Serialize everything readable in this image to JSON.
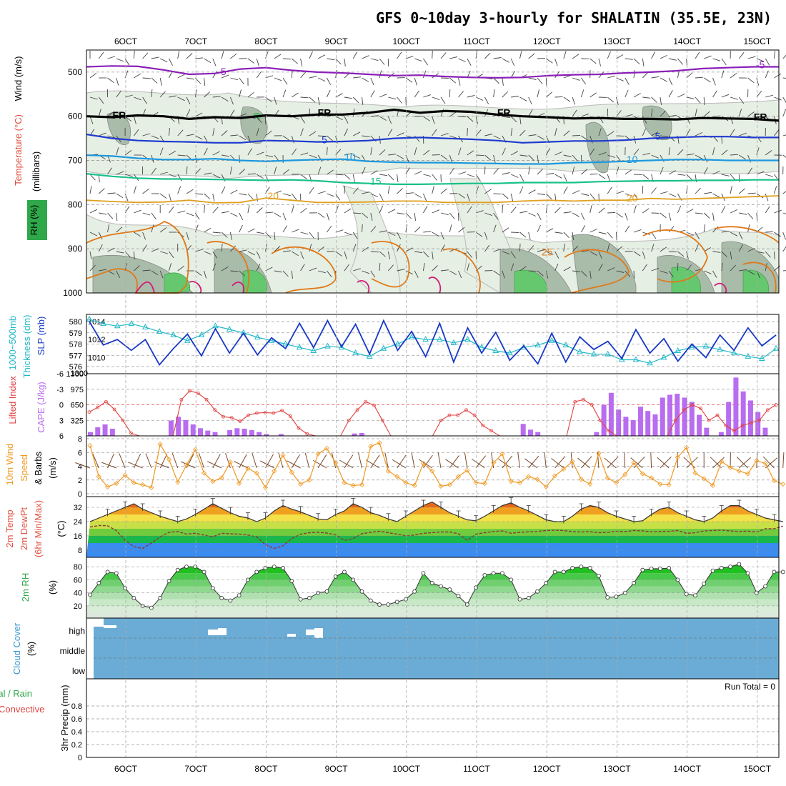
{
  "title": "GFS 0~10day 3-hourly for SHALATIN (35.5E, 23N)",
  "time_axis": {
    "labels": [
      "6OCT",
      "7OCT",
      "8OCT",
      "9OCT",
      "10OCT",
      "11OCT",
      "12OCT",
      "13OCT",
      "14OCT",
      "15OCT"
    ],
    "steps_per_day": 8,
    "n_steps": 80
  },
  "colors": {
    "rh": "#2fa84a",
    "rh_shade": "#9ec59e",
    "minus5": "#8a1fb8",
    "fr": "#000000",
    "t5": "#1e3ad0",
    "t10": "#1a98e0",
    "t15": "#18c08a",
    "t20": "#e0a020",
    "t25": "#e07818",
    "slp": "#1838c8",
    "thickness": "#20b8c8",
    "cape": "#b86cf0",
    "li": "#e04040",
    "wind": "#f09820",
    "barb": "#7a4a2a",
    "temp_max": "#e02020",
    "dewpt": "#8a3a3a",
    "cloud": "#6aacd6",
    "precip_total": "#2fa84a",
    "precip_conv": "#e04040"
  },
  "chart_data": [
    {
      "type": "line",
      "name": "upper-air",
      "ylabel": "(millibars)",
      "side_labels": [
        "Wind (m/s)",
        "Temperature (°C)",
        "RH (%)"
      ],
      "yticks": [
        500,
        600,
        700,
        800,
        900,
        1000
      ],
      "ylim": [
        1000,
        450
      ],
      "contours": [
        {
          "label": "-5",
          "level_mb": [
            488,
            486,
            487,
            495,
            505,
            503,
            493,
            490,
            496,
            500,
            502,
            505,
            508,
            507,
            510,
            512,
            513,
            512,
            508,
            506,
            505,
            502,
            500,
            497,
            492,
            490,
            488,
            488
          ],
          "annot": [
            {
              "text": "-5",
              "i": 14
            },
            {
              "text": "-5",
              "i": 76
            }
          ]
        },
        {
          "label": "FR",
          "level_mb": [
            600,
            602,
            598,
            600,
            606,
            602,
            604,
            598,
            600,
            596,
            596,
            592,
            585,
            592,
            588,
            590,
            596,
            600,
            602,
            605,
            604,
            606,
            606,
            607,
            604,
            605,
            606,
            610
          ],
          "annot": [
            {
              "text": "FR",
              "i": 2
            },
            {
              "text": "FR",
              "i": 26
            },
            {
              "text": "FR",
              "i": 48
            },
            {
              "text": "FR",
              "i": 76
            }
          ]
        },
        {
          "label": "5",
          "level_mb": [
            641,
            650,
            655,
            657,
            658,
            660,
            660,
            655,
            656,
            658,
            657,
            655,
            650,
            648,
            650,
            652,
            655,
            660,
            658,
            656,
            656,
            654,
            650,
            648,
            646,
            646,
            648,
            648
          ],
          "annot": [
            {
              "text": "5",
              "i": 28
            },
            {
              "text": "5",
              "i": 66
            }
          ]
        },
        {
          "label": "10",
          "level_mb": [
            688,
            690,
            695,
            698,
            698,
            696,
            700,
            702,
            700,
            698,
            697,
            702,
            704,
            705,
            705,
            706,
            707,
            708,
            708,
            705,
            704,
            702,
            700,
            698,
            698,
            700,
            700,
            700
          ],
          "annot": [
            {
              "text": "10",
              "i": 29
            },
            {
              "text": "10",
              "i": 63
            }
          ]
        },
        {
          "label": "15",
          "level_mb": [
            730,
            736,
            740,
            742,
            742,
            743,
            744,
            745,
            744,
            746,
            750,
            752,
            754,
            754,
            753,
            752,
            752,
            750,
            750,
            750,
            748,
            747,
            746,
            746,
            745,
            745,
            744,
            744
          ],
          "annot": [
            {
              "text": "15",
              "i": 33
            }
          ]
        },
        {
          "label": "20",
          "level_mb": [
            790,
            793,
            795,
            794,
            790,
            796,
            795,
            785,
            790,
            795,
            795,
            794,
            792,
            792,
            795,
            795,
            795,
            792,
            790,
            792,
            790,
            790,
            786,
            788,
            786,
            784,
            782,
            780
          ],
          "annot": [
            {
              "text": "20",
              "i": 22
            },
            {
              "text": "20",
              "i": 63
            }
          ]
        },
        {
          "label": "25",
          "level_mb": [],
          "annot": [
            {
              "text": "25",
              "i": 28
            }
          ]
        }
      ]
    },
    {
      "type": "line",
      "name": "slp-thickness",
      "series": [
        {
          "name": "SLP (mb)",
          "yrange": [
            1009,
            1014
          ],
          "values": [
            1014,
            1011.4,
            1012,
            1010.8,
            1012,
            1009.2,
            1011,
            1012.6,
            1010.2,
            1013.2,
            1010.5,
            1012.7,
            1010.3,
            1012.2,
            1011,
            1013.8,
            1011.1,
            1014.1,
            1011.2,
            1013.7,
            1010.4,
            1014.1,
            1010.8,
            1012.9,
            1010.1,
            1013.8,
            1009.5,
            1013.3,
            1010.5,
            1012.8,
            1009.7,
            1011.3,
            1009.3,
            1012.7,
            1009.5,
            1012.3,
            1010.9,
            1011.8,
            1009.9,
            1013.1,
            1010.5,
            1012.1,
            1009.6,
            1011.5,
            1010,
            1012.5,
            1010.8,
            1013.3,
            1011.3,
            1012.5
          ]
        },
        {
          "name": "1000~500mb Thickness (dm)",
          "yrange": [
            576,
            580
          ],
          "values": [
            580.2,
            579.8,
            579.6,
            579.8,
            579.5,
            579.1,
            578.8,
            578.3,
            578.8,
            579.6,
            579.3,
            579,
            578.6,
            578.3,
            578,
            577.7,
            577.4,
            577.8,
            577.7,
            577.2,
            576.9,
            577.6,
            578,
            578.6,
            578.4,
            578.4,
            578.1,
            578.4,
            577.7,
            577.4,
            577.2,
            577.7,
            577.9,
            578.3,
            577.9,
            577.3,
            577.1,
            577.1,
            576.6,
            576.6,
            576.3,
            576.8,
            577.4,
            577.7,
            577.8,
            577.5,
            577.2,
            576.9,
            576.7,
            577.6
          ]
        }
      ],
      "yticks_left": [
        576,
        577,
        578,
        579,
        580
      ],
      "yticks_right": [
        1010,
        1012,
        1014
      ]
    },
    {
      "type": "bar",
      "name": "cape-li",
      "series": [
        {
          "name": "CAPE (J/kg)",
          "yrange": [
            0,
            1300
          ],
          "values": [
            80,
            180,
            240,
            150,
            0,
            0,
            0,
            0,
            0,
            0,
            0,
            320,
            400,
            330,
            240,
            160,
            110,
            80,
            0,
            120,
            160,
            150,
            120,
            80,
            40,
            0,
            40,
            0,
            0,
            0,
            0,
            0,
            0,
            0,
            0,
            0,
            50,
            60,
            0,
            0,
            0,
            0,
            0,
            0,
            0,
            0,
            0,
            0,
            0,
            0,
            0,
            0,
            0,
            0,
            0,
            0,
            0,
            0,
            0,
            250,
            130,
            80,
            0,
            0,
            0,
            0,
            0,
            0,
            0,
            80,
            650,
            900,
            550,
            400,
            330,
            610,
            520,
            450,
            800,
            860,
            880,
            800,
            710,
            440,
            170,
            0,
            80,
            710,
            1220,
            930,
            740,
            500,
            170,
            0
          ]
        },
        {
          "name": "Lifted Index",
          "yrange": [
            6,
            -6
          ],
          "values": [
            1.4,
            0.5,
            -0.6,
            0.9,
            3,
            5.5,
            6,
            6,
            6,
            6,
            6,
            -1,
            -2.7,
            -2.2,
            -1,
            1,
            2.3,
            2.5,
            3.2,
            2,
            1.6,
            1.5,
            1.6,
            1.1,
            2.2,
            4.5,
            5.6,
            6,
            6,
            6,
            6,
            3,
            1,
            -0.6,
            0.1,
            3,
            6,
            6,
            6,
            6,
            6,
            6,
            3,
            2,
            2,
            1,
            2,
            4,
            5,
            6,
            6,
            6,
            6,
            6,
            6,
            6,
            6,
            6,
            -0.6,
            -1,
            0,
            3,
            5,
            6,
            6,
            6,
            6,
            6,
            6,
            6,
            3,
            1,
            0,
            0.7,
            3,
            2,
            4,
            5,
            4,
            3.5,
            3,
            1,
            0
          ]
        }
      ],
      "yticks_left": [
        -6,
        -3,
        0,
        3,
        6
      ],
      "yticks_right": [
        325,
        650,
        975,
        1300
      ]
    },
    {
      "type": "line",
      "name": "wind10m",
      "ylabel": "(m/s)",
      "yrange": [
        0,
        8
      ],
      "yticks": [
        0,
        2,
        4,
        6,
        8
      ],
      "values": [
        7,
        2.5,
        1,
        1.5,
        2.7,
        1.6,
        1.3,
        0.9,
        7.2,
        5,
        1.7,
        4.2,
        6.4,
        3,
        1.8,
        2.3,
        4.6,
        1.5,
        3.7,
        3,
        0.9,
        3.3,
        5.6,
        3.1,
        1.4,
        2,
        5.8,
        6.6,
        4.5,
        1.6,
        1.2,
        1.3,
        6.9,
        7.4,
        3.3,
        2.5,
        1.6,
        1.2,
        4.4,
        3.3,
        1.1,
        1.3,
        2.5,
        3.4,
        1.6,
        1.5,
        4.5,
        5.8,
        1.8,
        1.6,
        2.5,
        2.1,
        1,
        2.6,
        3.6,
        4.7,
        2.1,
        1.4,
        5.9,
        2.3,
        1.6,
        2.8,
        4.5,
        2.9,
        2.3,
        1.4,
        1.3,
        5.3,
        6.7,
        3,
        2.2,
        1.2,
        4.7,
        3.8,
        3.3,
        2.9,
        4.8,
        4.4,
        1.9,
        1.4
      ]
    },
    {
      "type": "area",
      "name": "temp-dewpt",
      "ylabel": "(°C)",
      "yrange": [
        4,
        38
      ],
      "yticks": [
        8,
        16,
        24,
        32
      ],
      "temp": [
        24,
        26,
        28,
        30,
        32,
        34,
        31,
        29,
        27,
        25.5,
        24,
        25.5,
        28,
        31,
        34,
        31.5,
        29,
        27,
        26,
        24,
        26,
        30,
        33,
        31,
        29.5,
        27.5,
        25.5,
        25,
        28,
        30,
        34,
        32,
        29,
        27.5,
        25.5,
        24,
        27,
        30,
        33,
        35,
        32,
        29,
        27,
        25,
        24.5,
        27,
        30,
        33,
        34.5,
        32,
        30,
        27.5,
        25,
        24,
        24,
        27,
        31,
        33,
        32,
        29,
        27,
        25.5,
        24,
        24.5,
        28,
        31,
        32,
        29,
        27,
        25,
        24,
        26,
        30,
        33,
        33,
        30,
        28,
        26,
        25,
        24
      ],
      "dewpt": [
        21,
        21.8,
        21.7,
        19,
        13.5,
        10,
        9,
        12,
        15.5,
        18,
        18.5,
        17,
        17.5,
        16.5,
        15.5,
        17.5,
        17.2,
        17,
        16.5,
        15.5,
        11,
        9,
        10.5,
        14.5,
        17,
        17.8,
        18,
        17.6,
        16.6,
        13.5,
        14.5,
        17.3,
        18,
        18.6,
        17.8,
        17,
        16,
        16.5,
        17.5,
        17.8,
        18.2,
        18.2,
        17.2,
        13.5,
        17,
        17.8,
        18.5,
        18.8,
        17.5,
        18,
        18.3,
        18.5,
        19,
        19.2,
        19,
        18.4,
        18.2,
        18.4,
        17.8,
        18,
        18.6,
        18.4,
        19,
        18.8,
        18.3,
        18.5,
        18.6,
        19,
        17.5,
        17.8,
        18.8,
        19,
        19.2,
        18.8,
        18.5,
        18.7,
        18.2,
        20,
        20,
        21.5
      ]
    },
    {
      "type": "area",
      "name": "rh2m",
      "ylabel": "(%)",
      "yrange": [
        10,
        90
      ],
      "yticks": [
        20,
        40,
        60,
        80
      ],
      "values": [
        37,
        55,
        72,
        70,
        47,
        32,
        20,
        17,
        32,
        58,
        75,
        80,
        80,
        72,
        47,
        32,
        28,
        36,
        60,
        72,
        78,
        80,
        78,
        58,
        30,
        32,
        40,
        42,
        65,
        72,
        60,
        42,
        28,
        22,
        22,
        26,
        30,
        42,
        70,
        55,
        50,
        45,
        35,
        22,
        48,
        67,
        70,
        70,
        60,
        30,
        32,
        42,
        55,
        72,
        72,
        78,
        80,
        78,
        66,
        33,
        34,
        40,
        55,
        75,
        77,
        77,
        78,
        60,
        38,
        36,
        54,
        74,
        78,
        80,
        84,
        70,
        40,
        50,
        72,
        72
      ]
    },
    {
      "type": "bar",
      "name": "cloud",
      "ylabel": "(%)",
      "levels": [
        "high",
        "middle",
        "low"
      ],
      "note": "high cloud gaps near steps 0-4, 19-22, 33-36"
    },
    {
      "type": "bar",
      "name": "precip",
      "ylabel": "3hr Precip (mm)",
      "legend": [
        "Total / Rain",
        "Convective"
      ],
      "yrange": [
        0,
        1
      ],
      "yticks": [
        0,
        0.2,
        0.4,
        0.6,
        0.8
      ],
      "run_total_label": "Run Total = 0",
      "values": []
    }
  ],
  "panel_labels": {
    "wind": "Wind (m/s)",
    "temperature": "Temperature (°C)",
    "rh": "RH (%)",
    "millibars": "(millibars)",
    "thickness": "1000~500mb",
    "thickness2": "Thickness (dm)",
    "slp": "SLP (mb)",
    "li": "Lifted Index",
    "cape": "CAPE (J/kg)",
    "wind10": "10m Wind",
    "speed": "Speed",
    "barbs": "& Barbs",
    "ms": "(m/s)",
    "t2m": "2m Temp",
    "dp2m": "2m DewPt",
    "minmax": "(6hr Min/Max)",
    "degc": "(°C)",
    "rh2m": "2m RH",
    "pct": "(%)",
    "cloud": "Cloud Cover",
    "total_rain": "Total / Rain",
    "convective": "Convective",
    "precip": "3hr Precip (mm)"
  }
}
